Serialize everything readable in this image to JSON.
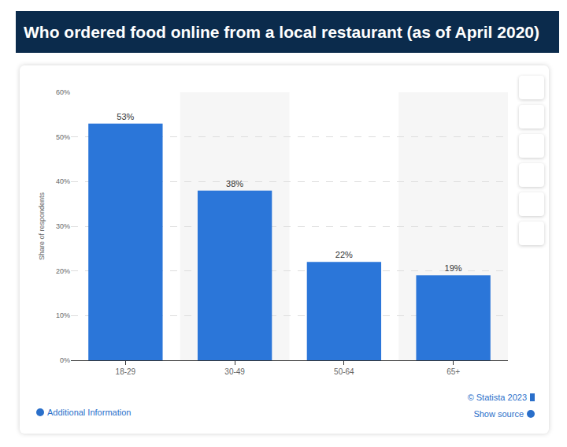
{
  "chart_data": {
    "type": "bar",
    "title": "Who ordered food online from a local restaurant (as of April 2020)",
    "y_label": "Share of respondents",
    "categories": [
      "18-29",
      "30-49",
      "50-64",
      "65+"
    ],
    "values": [
      53,
      38,
      22,
      19
    ],
    "value_labels": [
      "53%",
      "38%",
      "22%",
      "19%"
    ],
    "color": "#2b76d9",
    "ylim": [
      0,
      60
    ],
    "yticks": [
      {
        "value": 0,
        "label": "0%"
      },
      {
        "value": 10,
        "label": "10%"
      },
      {
        "value": 20,
        "label": "20%"
      },
      {
        "value": 30,
        "label": "30%"
      },
      {
        "value": 40,
        "label": "40%"
      },
      {
        "value": 50,
        "label": "50%"
      },
      {
        "value": 60,
        "label": "60%"
      }
    ],
    "grid": true,
    "data_labels": true,
    "annotations": [
      "Additional Information",
      "© Statista 2023",
      "Show source"
    ]
  }
}
